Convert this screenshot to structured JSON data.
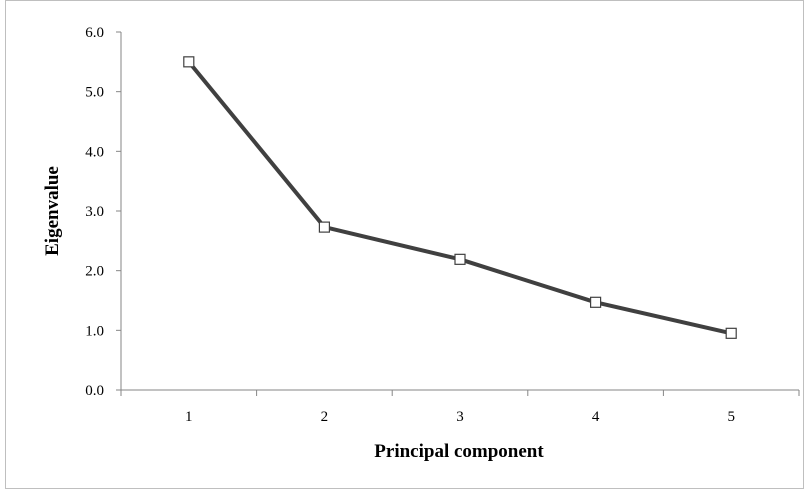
{
  "chart_data": {
    "type": "line",
    "title": "",
    "xlabel": "Principal component",
    "ylabel": "Eigenvalue",
    "categories": [
      "1",
      "2",
      "3",
      "4",
      "5"
    ],
    "series": [
      {
        "values": [
          5.5,
          2.73,
          2.19,
          1.47,
          0.95
        ]
      }
    ],
    "ylim": [
      0.0,
      6.0
    ],
    "yticks": [
      "0.0",
      "1.0",
      "2.0",
      "3.0",
      "4.0",
      "5.0",
      "6.0"
    ],
    "grid": false,
    "legend": "none",
    "line_color": "#404040",
    "marker": "square"
  }
}
